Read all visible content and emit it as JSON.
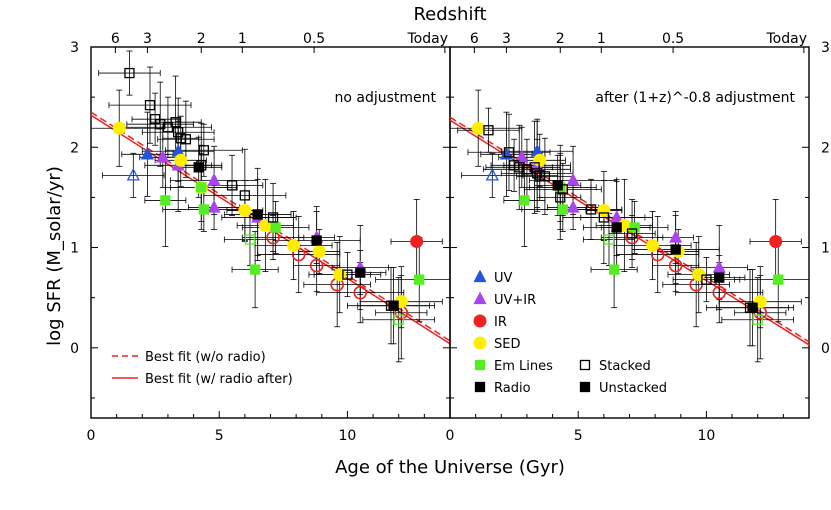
{
  "chart_data": {
    "type": "scatter",
    "figure_title": "Redshift",
    "xlabel": "Age of the Universe (Gyr)",
    "ylabel": "log SFR (M_solar/yr)",
    "xlim": [
      0,
      14
    ],
    "ylim": [
      -0.7,
      3
    ],
    "x_ticks": [
      0,
      5,
      10
    ],
    "y_ticks": [
      0,
      1,
      2,
      3
    ],
    "redshift_ticks": [
      {
        "label": "6",
        "age": 0.95
      },
      {
        "label": "3",
        "age": 2.2
      },
      {
        "label": "2",
        "age": 4.3
      },
      {
        "label": "1",
        "age": 5.9
      },
      {
        "label": "0.5",
        "age": 8.7
      },
      {
        "label": "Today",
        "age": 13.8
      }
    ],
    "colors": {
      "UV": "#2255dd",
      "UV+IR": "#aa44ee",
      "IR": "#ee2222",
      "SED": "#ffee00",
      "Em Lines": "#55ee22",
      "Stacked": "#000000",
      "Unstacked": "#000000",
      "fit": "#ee2222"
    },
    "legend_left": [
      {
        "label": "Best fit (w/o radio)",
        "style": "dashed"
      },
      {
        "label": "Best fit (w/ radio after)",
        "style": "solid"
      }
    ],
    "legend_right": [
      {
        "label": "UV",
        "marker": "triangle",
        "color": "#2255dd"
      },
      {
        "label": "UV+IR",
        "marker": "triangle",
        "color": "#aa44ee"
      },
      {
        "label": "IR",
        "marker": "circle",
        "color": "#ee2222"
      },
      {
        "label": "SED",
        "marker": "circle",
        "color": "#ffee00"
      },
      {
        "label": "Em Lines",
        "marker": "square",
        "color": "#55ee22"
      },
      {
        "label": "Radio",
        "marker": "square",
        "color": "#000000"
      },
      {
        "label": "Stacked",
        "marker": "open-square",
        "color": "#000000"
      },
      {
        "label": "Unstacked",
        "marker": "square",
        "color": "#000000"
      }
    ],
    "panels": [
      {
        "title": "no adjustment",
        "fit_dashed": {
          "x": [
            0,
            14
          ],
          "y": [
            2.35,
            0.07
          ]
        },
        "fit_solid": {
          "x": [
            0,
            14
          ],
          "y": [
            2.32,
            0.04
          ]
        },
        "series": [
          {
            "name": "UV",
            "points": [
              [
                2.2,
                1.93
              ],
              [
                3.4,
                1.96
              ]
            ]
          },
          {
            "name": "UV open",
            "points": [
              [
                1.65,
                1.72
              ]
            ]
          },
          {
            "name": "UV+IR",
            "points": [
              [
                2.8,
                1.9
              ],
              [
                3.4,
                1.82
              ],
              [
                4.8,
                1.67
              ],
              [
                4.8,
                1.4
              ],
              [
                6.5,
                1.3
              ],
              [
                8.8,
                1.1
              ],
              [
                10.5,
                0.8
              ]
            ]
          },
          {
            "name": "IR",
            "points": [
              [
                12.7,
                1.06
              ]
            ]
          },
          {
            "name": "IR open",
            "points": [
              [
                7.1,
                1.1
              ],
              [
                8.1,
                0.93
              ],
              [
                8.8,
                0.82
              ],
              [
                9.6,
                0.63
              ],
              [
                10.5,
                0.55
              ],
              [
                12.1,
                0.35
              ]
            ]
          },
          {
            "name": "SED",
            "points": [
              [
                1.1,
                2.19
              ],
              [
                3.5,
                1.87
              ],
              [
                4.3,
                1.6
              ],
              [
                6.0,
                1.37
              ],
              [
                6.8,
                1.22
              ],
              [
                7.9,
                1.02
              ],
              [
                8.9,
                0.96
              ],
              [
                9.7,
                0.73
              ],
              [
                12.1,
                0.46
              ]
            ]
          },
          {
            "name": "Em Lines",
            "points": [
              [
                2.9,
                1.47
              ],
              [
                4.3,
                1.6
              ],
              [
                4.4,
                1.38
              ],
              [
                6.4,
                0.78
              ],
              [
                7.2,
                1.2
              ],
              [
                12.8,
                0.68
              ]
            ]
          },
          {
            "name": "Em Lines open",
            "points": [
              [
                6.2,
                1.08
              ],
              [
                12.0,
                0.28
              ]
            ]
          },
          {
            "name": "Stacked",
            "points": [
              [
                1.5,
                2.74
              ],
              [
                2.3,
                2.42
              ],
              [
                2.5,
                2.28
              ],
              [
                2.7,
                2.23
              ],
              [
                3.0,
                2.2
              ],
              [
                3.3,
                2.25
              ],
              [
                3.4,
                2.15
              ],
              [
                3.5,
                2.09
              ],
              [
                3.7,
                2.08
              ],
              [
                4.4,
                1.97
              ],
              [
                4.3,
                1.82
              ],
              [
                5.5,
                1.62
              ],
              [
                6.0,
                1.52
              ],
              [
                7.1,
                1.3
              ],
              [
                10.0,
                0.73
              ],
              [
                11.7,
                0.42
              ]
            ]
          },
          {
            "name": "Radio",
            "points": [
              [
                4.2,
                1.8
              ],
              [
                6.5,
                1.33
              ],
              [
                8.8,
                1.07
              ],
              [
                10.5,
                0.75
              ],
              [
                11.8,
                0.42
              ]
            ]
          }
        ]
      },
      {
        "title": "after (1+z)^-0.8 adjustment",
        "fit_dashed": {
          "x": [
            0,
            14
          ],
          "y": [
            2.3,
            0.06
          ]
        },
        "fit_solid": {
          "x": [
            0,
            14
          ],
          "y": [
            2.27,
            0.03
          ]
        },
        "series": [
          {
            "name": "UV",
            "points": [
              [
                2.2,
                1.93
              ],
              [
                3.4,
                1.96
              ]
            ]
          },
          {
            "name": "UV open",
            "points": [
              [
                1.65,
                1.72
              ]
            ]
          },
          {
            "name": "UV+IR",
            "points": [
              [
                2.8,
                1.9
              ],
              [
                3.4,
                1.82
              ],
              [
                4.8,
                1.67
              ],
              [
                4.8,
                1.4
              ],
              [
                6.5,
                1.3
              ],
              [
                8.8,
                1.1
              ],
              [
                10.5,
                0.8
              ]
            ]
          },
          {
            "name": "IR",
            "points": [
              [
                12.7,
                1.06
              ]
            ]
          },
          {
            "name": "IR open",
            "points": [
              [
                7.1,
                1.1
              ],
              [
                8.1,
                0.93
              ],
              [
                8.8,
                0.82
              ],
              [
                9.6,
                0.63
              ],
              [
                10.5,
                0.55
              ],
              [
                12.1,
                0.35
              ]
            ]
          },
          {
            "name": "SED",
            "points": [
              [
                1.1,
                2.19
              ],
              [
                3.5,
                1.87
              ],
              [
                4.3,
                1.6
              ],
              [
                6.0,
                1.37
              ],
              [
                6.8,
                1.22
              ],
              [
                7.9,
                1.02
              ],
              [
                8.9,
                0.96
              ],
              [
                9.7,
                0.73
              ],
              [
                12.1,
                0.46
              ]
            ]
          },
          {
            "name": "Em Lines",
            "points": [
              [
                2.9,
                1.47
              ],
              [
                4.3,
                1.6
              ],
              [
                4.4,
                1.38
              ],
              [
                6.4,
                0.78
              ],
              [
                7.2,
                1.2
              ],
              [
                12.8,
                0.68
              ]
            ]
          },
          {
            "name": "Em Lines open",
            "points": [
              [
                6.2,
                1.08
              ],
              [
                12.0,
                0.28
              ]
            ]
          },
          {
            "name": "Stacked",
            "points": [
              [
                1.5,
                2.17
              ],
              [
                2.3,
                1.95
              ],
              [
                2.5,
                1.82
              ],
              [
                2.7,
                1.8
              ],
              [
                3.0,
                1.78
              ],
              [
                3.3,
                1.8
              ],
              [
                3.4,
                1.74
              ],
              [
                3.5,
                1.72
              ],
              [
                3.7,
                1.71
              ],
              [
                4.4,
                1.58
              ],
              [
                4.3,
                1.5
              ],
              [
                5.5,
                1.38
              ],
              [
                6.0,
                1.3
              ],
              [
                7.1,
                1.14
              ],
              [
                10.0,
                0.68
              ],
              [
                11.7,
                0.4
              ]
            ]
          },
          {
            "name": "Radio",
            "points": [
              [
                4.2,
                1.62
              ],
              [
                6.5,
                1.2
              ],
              [
                8.8,
                0.98
              ],
              [
                10.5,
                0.7
              ],
              [
                11.8,
                0.4
              ]
            ]
          }
        ]
      }
    ]
  }
}
